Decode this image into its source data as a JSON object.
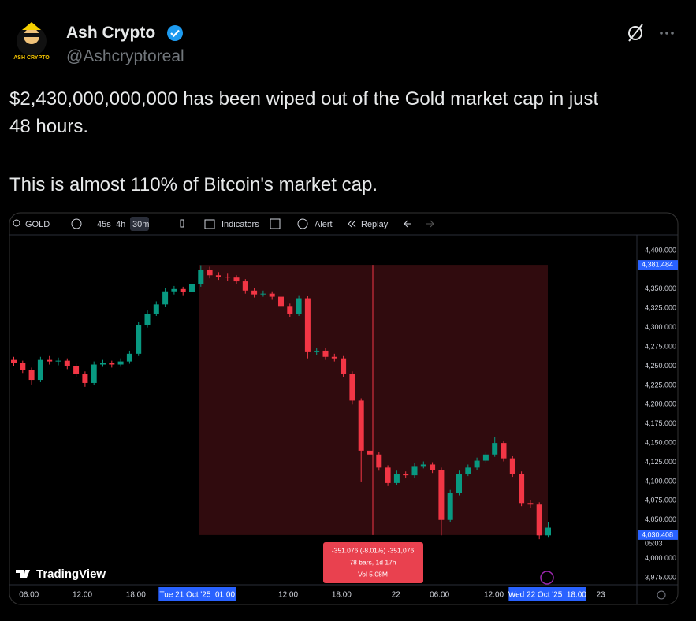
{
  "tweet": {
    "name": "Ash Crypto",
    "handle": "@Ashcryptoreal",
    "avatar_text": "ASH CRYPTO",
    "lines": [
      "$2,430,000,000,000 has been wiped out of the Gold market cap in just",
      "48 hours.",
      "This is almost 110% of Bitcoin's market cap."
    ]
  },
  "chart": {
    "type": "candlestick",
    "symbol": "GOLD",
    "toolbar": [
      "45s",
      "4h",
      "30m",
      "Indicators",
      "Alert",
      "Replay"
    ],
    "brand": "TradingView",
    "ylim": [
      3965,
      4410
    ],
    "yticks": [
      {
        "value": 4400,
        "label": "4,400.000"
      },
      {
        "value": 4350,
        "label": "4,350.000"
      },
      {
        "value": 4325,
        "label": "4,325.000"
      },
      {
        "value": 4300,
        "label": "4,300.000"
      },
      {
        "value": 4275,
        "label": "4,275.000"
      },
      {
        "value": 4250,
        "label": "4,250.000"
      },
      {
        "value": 4225,
        "label": "4,225.000"
      },
      {
        "value": 4200,
        "label": "4,200.000"
      },
      {
        "value": 4175,
        "label": "4,175.000"
      },
      {
        "value": 4150,
        "label": "4,150.000"
      },
      {
        "value": 4125,
        "label": "4,125.000"
      },
      {
        "value": 4100,
        "label": "4,100.000"
      },
      {
        "value": 4075,
        "label": "4,075.000"
      },
      {
        "value": 4050,
        "label": "4,050.000"
      },
      {
        "value": 4000,
        "label": "4,000.000"
      },
      {
        "value": 3975,
        "label": "3,975.000"
      }
    ],
    "xticks": [
      {
        "value": 1.7,
        "label": "06:00"
      },
      {
        "value": 7.7,
        "label": "12:00"
      },
      {
        "value": 13.7,
        "label": "18:00"
      },
      {
        "value": 30.8,
        "label": "12:00"
      },
      {
        "value": 36.8,
        "label": "18:00"
      },
      {
        "value": 42.9,
        "label": "22"
      },
      {
        "value": 47.8,
        "label": "06:00"
      },
      {
        "value": 53.9,
        "label": "12:00"
      },
      {
        "value": 65.9,
        "label": "23"
      }
    ],
    "crosshair_x": [
      {
        "value": 20.6,
        "label": "Tue 21 Oct '25  01:00"
      },
      {
        "value": 59.9,
        "label": "Wed 22 Oct '25  18:00"
      }
    ],
    "range_top": {
      "value": 4381.484,
      "label": "4,381.484"
    },
    "range_bottom": {
      "value": 4030.408,
      "label": "4,030.408"
    },
    "countdown": "05:03",
    "measure": [
      "-351.076 (-8.01%) -351,076",
      "78 bars, 1d 17h",
      "Vol 5.08M"
    ],
    "up_color": "#089981",
    "down_color": "#f23645",
    "candles": [
      [
        4258,
        4262,
        4250,
        4254
      ],
      [
        4254,
        4257,
        4241,
        4245
      ],
      [
        4245,
        4248,
        4226,
        4232
      ],
      [
        4232,
        4262,
        4229,
        4258
      ],
      [
        4258,
        4263,
        4252,
        4256
      ],
      [
        4256,
        4261,
        4251,
        4257
      ],
      [
        4257,
        4260,
        4246,
        4250
      ],
      [
        4250,
        4253,
        4236,
        4240
      ],
      [
        4240,
        4243,
        4223,
        4228
      ],
      [
        4228,
        4256,
        4225,
        4252
      ],
      [
        4252,
        4258,
        4249,
        4254
      ],
      [
        4254,
        4257,
        4248,
        4252
      ],
      [
        4252,
        4260,
        4249,
        4256
      ],
      [
        4256,
        4270,
        4253,
        4266
      ],
      [
        4266,
        4307,
        4263,
        4303
      ],
      [
        4303,
        4322,
        4300,
        4318
      ],
      [
        4318,
        4334,
        4315,
        4330
      ],
      [
        4330,
        4351,
        4327,
        4347
      ],
      [
        4347,
        4354,
        4343,
        4350
      ],
      [
        4350,
        4353,
        4342,
        4346
      ],
      [
        4346,
        4360,
        4343,
        4356
      ],
      [
        4356,
        4381,
        4353,
        4375
      ],
      [
        4375,
        4379,
        4364,
        4368
      ],
      [
        4368,
        4372,
        4362,
        4366
      ],
      [
        4366,
        4370,
        4361,
        4365
      ],
      [
        4365,
        4368,
        4356,
        4360
      ],
      [
        4360,
        4363,
        4344,
        4348
      ],
      [
        4348,
        4351,
        4339,
        4343
      ],
      [
        4343,
        4348,
        4340,
        4344
      ],
      [
        4344,
        4347,
        4336,
        4340
      ],
      [
        4340,
        4343,
        4324,
        4328
      ],
      [
        4328,
        4331,
        4314,
        4318
      ],
      [
        4318,
        4342,
        4315,
        4338
      ],
      [
        4338,
        4341,
        4260,
        4268
      ],
      [
        4268,
        4274,
        4264,
        4270
      ],
      [
        4270,
        4273,
        4258,
        4262
      ],
      [
        4262,
        4266,
        4256,
        4260
      ],
      [
        4260,
        4263,
        4236,
        4240
      ],
      [
        4240,
        4243,
        4200,
        4205
      ],
      [
        4205,
        4208,
        4100,
        4140
      ],
      [
        4140,
        4145,
        4131,
        4135
      ],
      [
        4135,
        4138,
        4114,
        4118
      ],
      [
        4118,
        4121,
        4094,
        4098
      ],
      [
        4098,
        4114,
        4095,
        4110
      ],
      [
        4110,
        4113,
        4104,
        4108
      ],
      [
        4108,
        4124,
        4105,
        4120
      ],
      [
        4120,
        4126,
        4117,
        4122
      ],
      [
        4122,
        4125,
        4111,
        4115
      ],
      [
        4115,
        4118,
        4030,
        4050
      ],
      [
        4050,
        4089,
        4047,
        4085
      ],
      [
        4085,
        4114,
        4082,
        4110
      ],
      [
        4110,
        4122,
        4107,
        4118
      ],
      [
        4118,
        4131,
        4115,
        4127
      ],
      [
        4127,
        4139,
        4124,
        4135
      ],
      [
        4135,
        4158,
        4132,
        4150
      ],
      [
        4150,
        4153,
        4126,
        4130
      ],
      [
        4130,
        4133,
        4106,
        4110
      ],
      [
        4110,
        4113,
        4068,
        4072
      ],
      [
        4072,
        4076,
        4066,
        4070
      ],
      [
        4070,
        4073,
        4025,
        4030
      ],
      [
        4030,
        4047,
        4027,
        4040
      ]
    ]
  }
}
